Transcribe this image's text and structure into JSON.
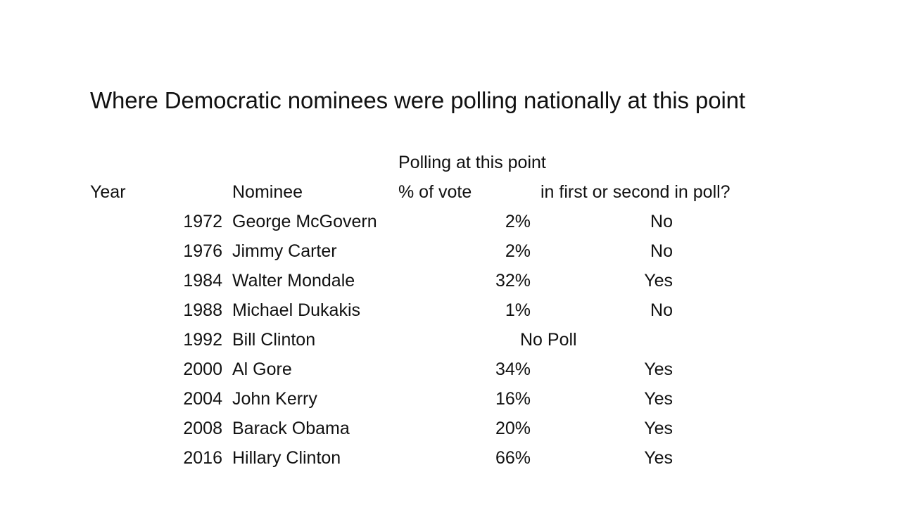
{
  "title": "Where Democratic nominees were polling nationally at this point",
  "chart_data": {
    "type": "table",
    "title": "Where Democratic nominees were polling nationally at this point",
    "header_group": "Polling at this point",
    "columns": [
      "Year",
      "Nominee",
      "% of vote",
      "in first or second in poll?"
    ],
    "rows": [
      {
        "year": "1972",
        "nominee": "George McGovern",
        "vote": "2%",
        "first_or_second": "No",
        "note": ""
      },
      {
        "year": "1976",
        "nominee": "Jimmy Carter",
        "vote": "2%",
        "first_or_second": "No",
        "note": ""
      },
      {
        "year": "1984",
        "nominee": "Walter Mondale",
        "vote": "32%",
        "first_or_second": "Yes",
        "note": ""
      },
      {
        "year": "1988",
        "nominee": "Michael Dukakis",
        "vote": "1%",
        "first_or_second": "No",
        "note": ""
      },
      {
        "year": "1992",
        "nominee": "Bill Clinton",
        "vote": "",
        "first_or_second": "",
        "note": "No Poll"
      },
      {
        "year": "2000",
        "nominee": "Al Gore",
        "vote": "34%",
        "first_or_second": "Yes",
        "note": ""
      },
      {
        "year": "2004",
        "nominee": "John Kerry",
        "vote": "16%",
        "first_or_second": "Yes",
        "note": ""
      },
      {
        "year": "2008",
        "nominee": "Barack Obama",
        "vote": "20%",
        "first_or_second": "Yes",
        "note": ""
      },
      {
        "year": "2016",
        "nominee": "Hillary Clinton",
        "vote": "66%",
        "first_or_second": "Yes",
        "note": ""
      }
    ]
  }
}
